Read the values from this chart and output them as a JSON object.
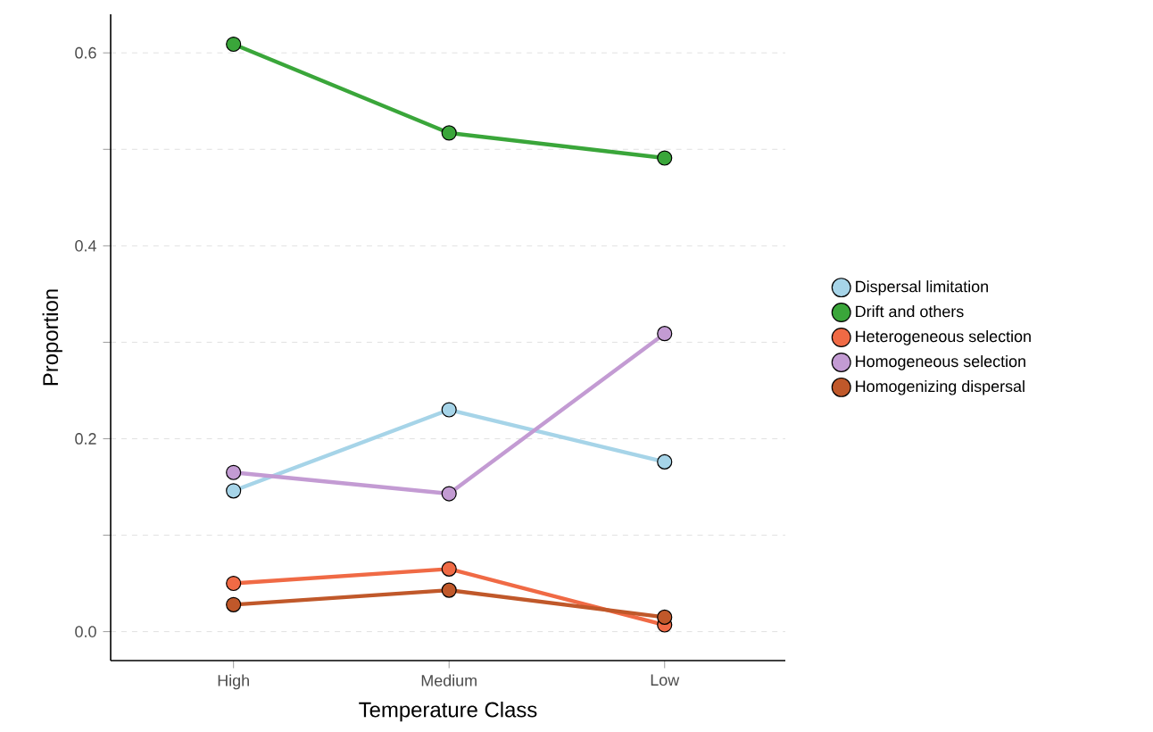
{
  "chart_data": {
    "type": "line",
    "xlabel": "Temperature Class",
    "ylabel": "Proportion",
    "categories": [
      "High",
      "Medium",
      "Low"
    ],
    "series": [
      {
        "name": "Dispersal limitation",
        "color": "#a6d4e8",
        "values": [
          0.146,
          0.23,
          0.176
        ]
      },
      {
        "name": "Drift and others",
        "color": "#3aa63a",
        "values": [
          0.609,
          0.517,
          0.491
        ]
      },
      {
        "name": "Heterogeneous selection",
        "color": "#f06a45",
        "values": [
          0.05,
          0.065,
          0.007
        ]
      },
      {
        "name": "Homogeneous selection",
        "color": "#c39bd3",
        "values": [
          0.165,
          0.143,
          0.309
        ]
      },
      {
        "name": "Homogenizing dispersal",
        "color": "#c0582a",
        "values": [
          0.028,
          0.043,
          0.015
        ]
      }
    ],
    "ylim": [
      -0.03,
      0.64
    ],
    "yticks": [
      {
        "value": 0,
        "label": "0.0"
      },
      {
        "value": 0.1,
        "label": null
      },
      0.2,
      {
        "value": 0.3,
        "label": null
      },
      0.4,
      {
        "value": 0.5,
        "label": null
      },
      0.6
    ],
    "grid": "y",
    "legend": "right",
    "marker": "circle",
    "line_style": "solid"
  }
}
